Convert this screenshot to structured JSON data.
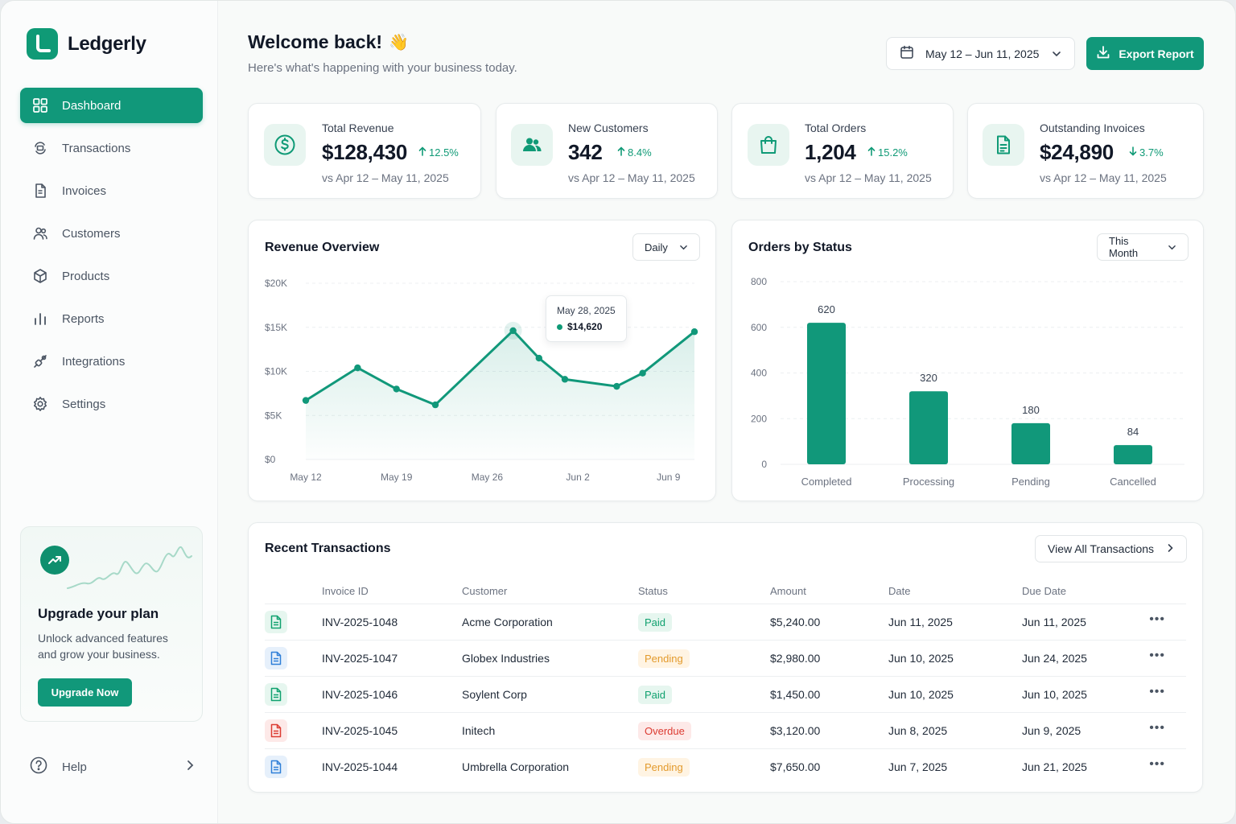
{
  "app": {
    "name": "Ledgerly"
  },
  "nav": [
    {
      "label": "Dashboard",
      "icon": "grid-icon",
      "active": true
    },
    {
      "label": "Transactions",
      "icon": "transactions-icon"
    },
    {
      "label": "Invoices",
      "icon": "document-icon"
    },
    {
      "label": "Customers",
      "icon": "users-icon"
    },
    {
      "label": "Products",
      "icon": "box-icon"
    },
    {
      "label": "Reports",
      "icon": "bar-chart-icon"
    },
    {
      "label": "Integrations",
      "icon": "plug-icon"
    },
    {
      "label": "Settings",
      "icon": "gear-icon"
    }
  ],
  "upgrade": {
    "title": "Upgrade your plan",
    "description": "Unlock advanced features and grow your business.",
    "button": "Upgrade Now"
  },
  "help": {
    "label": "Help"
  },
  "header": {
    "title": "Welcome back!",
    "emoji": "👋",
    "subtitle": "Here's what's happening with your business today.",
    "date_range": "May 12 – Jun 11, 2025",
    "export_label": "Export Report"
  },
  "stats": [
    {
      "label": "Total Revenue",
      "value": "$128,430",
      "delta": "12.5%",
      "direction": "up",
      "compare": "vs Apr 12 – May 11, 2025",
      "icon": "dollar-icon"
    },
    {
      "label": "New Customers",
      "value": "342",
      "delta": "8.4%",
      "direction": "up",
      "compare": "vs Apr 12 – May 11, 2025",
      "icon": "users-icon"
    },
    {
      "label": "Total Orders",
      "value": "1,204",
      "delta": "15.2%",
      "direction": "up",
      "compare": "vs Apr 12 – May 11, 2025",
      "icon": "shopping-bag-icon"
    },
    {
      "label": "Outstanding Invoices",
      "value": "$24,890",
      "delta": "3.7%",
      "direction": "down",
      "compare": "vs Apr 12 – May 11, 2025",
      "icon": "invoice-icon"
    }
  ],
  "revenue_overview": {
    "title": "Revenue Overview",
    "period": "Daily",
    "tooltip": {
      "date": "May 28, 2025",
      "value": "$14,620"
    }
  },
  "orders_by_status": {
    "title": "Orders by Status",
    "period": "This Month"
  },
  "chart_data": [
    {
      "type": "area",
      "title": "Revenue Overview",
      "x_tick_labels": [
        "May 12",
        "May 19",
        "May 26",
        "Jun 2",
        "Jun 9"
      ],
      "y_tick_labels": [
        "$0",
        "$5K",
        "$10K",
        "$15K",
        "$20K"
      ],
      "ylim": [
        0,
        20000
      ],
      "x": [
        "May 12",
        "May 16",
        "May 19",
        "May 22",
        "May 28",
        "May 30",
        "Jun 1",
        "Jun 5",
        "Jun 7",
        "Jun 11"
      ],
      "series": [
        {
          "values": [
            6700,
            10400,
            8000,
            6200,
            14620,
            11500,
            9100,
            8300,
            9800,
            14500
          ]
        }
      ],
      "grid": true,
      "color": "#11987a"
    },
    {
      "type": "bar",
      "title": "Orders by Status",
      "categories": [
        "Completed",
        "Processing",
        "Pending",
        "Cancelled"
      ],
      "values": [
        620,
        320,
        180,
        84
      ],
      "y_tick_labels": [
        "0",
        "200",
        "400",
        "600",
        "800"
      ],
      "ylim": [
        0,
        800
      ],
      "grid": true,
      "color": "#11987a"
    }
  ],
  "transactions": {
    "title": "Recent Transactions",
    "view_all": "View All Transactions",
    "columns": [
      "Invoice ID",
      "Customer",
      "Status",
      "Amount",
      "Date",
      "Due Date"
    ],
    "rows": [
      {
        "id": "INV-2025-1048",
        "customer": "Acme Corporation",
        "status": "Paid",
        "amount": "$5,240.00",
        "date": "Jun 11, 2025",
        "due": "Jun 11, 2025",
        "icon_color": "#10a16f"
      },
      {
        "id": "INV-2025-1047",
        "customer": "Globex Industries",
        "status": "Pending",
        "amount": "$2,980.00",
        "date": "Jun 10, 2025",
        "due": "Jun 24, 2025",
        "icon_color": "#2f7fd8"
      },
      {
        "id": "INV-2025-1046",
        "customer": "Soylent Corp",
        "status": "Paid",
        "amount": "$1,450.00",
        "date": "Jun 10, 2025",
        "due": "Jun 10, 2025",
        "icon_color": "#10a16f"
      },
      {
        "id": "INV-2025-1045",
        "customer": "Initech",
        "status": "Overdue",
        "amount": "$3,120.00",
        "date": "Jun 8, 2025",
        "due": "Jun 9, 2025",
        "icon_color": "#dc3b32"
      },
      {
        "id": "INV-2025-1044",
        "customer": "Umbrella Corporation",
        "status": "Pending",
        "amount": "$7,650.00",
        "date": "Jun 7, 2025",
        "due": "Jun 21, 2025",
        "icon_color": "#2f7fd8"
      }
    ]
  }
}
